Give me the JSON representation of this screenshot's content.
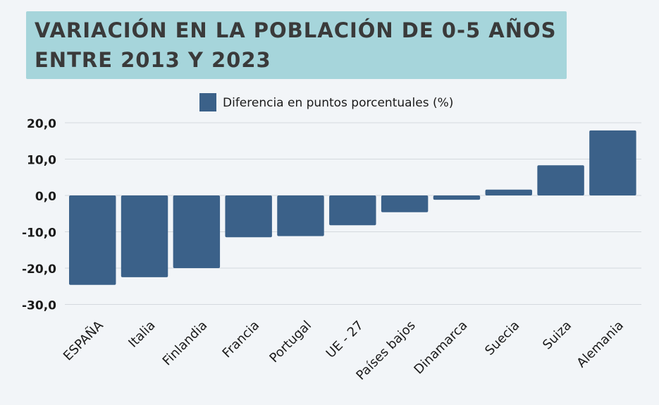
{
  "title": {
    "line1": "VARIACIÓN EN LA POBLACIÓN DE 0-5 AÑOS",
    "line2": "ENTRE 2013 Y 2023"
  },
  "colors": {
    "bar": "#3b6189",
    "grid": "#d4d9de",
    "text": "#1a1a1a",
    "title_bg": "#a6d5db"
  },
  "chart_data": {
    "type": "bar",
    "categories": [
      "ESPAÑA",
      "Italia",
      "Finlandia",
      "Francia",
      "Portugal",
      "UE - 27",
      "Países bajos",
      "Dinamarca",
      "Suecia",
      "Suiza",
      "Alemania"
    ],
    "series": [
      {
        "name": "Diferencia en puntos porcentuales (%)",
        "values": [
          -24.6,
          -22.5,
          -20.0,
          -11.5,
          -11.2,
          -8.2,
          -4.6,
          -1.2,
          1.6,
          8.3,
          17.9
        ]
      }
    ],
    "yticks": [
      "20,0",
      "10,0",
      "0,0",
      "-10,0",
      "-20,0",
      "-30,0"
    ],
    "ylim": [
      -30,
      20
    ],
    "grid": true,
    "legend": "top-center"
  }
}
